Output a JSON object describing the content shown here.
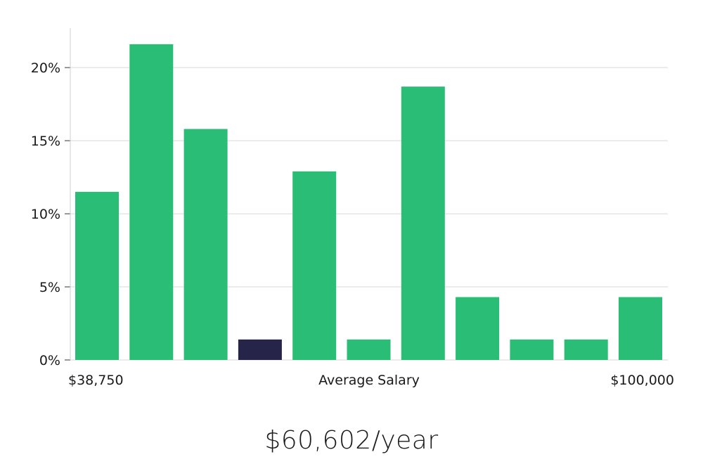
{
  "chart_data": {
    "type": "bar",
    "categories": [
      "1",
      "2",
      "3",
      "4",
      "5",
      "6",
      "7",
      "8",
      "9",
      "10",
      "11"
    ],
    "values": [
      11.5,
      21.6,
      15.8,
      1.4,
      12.9,
      1.4,
      18.7,
      4.3,
      1.4,
      1.4,
      4.3
    ],
    "highlight_index": 3,
    "colors": {
      "bar": "#2abd75",
      "highlight": "#27244a",
      "grid": "#d9d9d9",
      "axis": "#cfcfcf"
    },
    "ylim": [
      0,
      22.7
    ],
    "yticks": [
      0,
      5,
      10,
      15,
      20
    ],
    "ytick_labels": [
      "0%",
      "5%",
      "10%",
      "15%",
      "20%"
    ],
    "x_left_label": "$38,750",
    "x_center_label": "Average Salary",
    "x_right_label": "$100,000",
    "grid": true
  },
  "summary": {
    "salary_text": "$60,602/year"
  }
}
